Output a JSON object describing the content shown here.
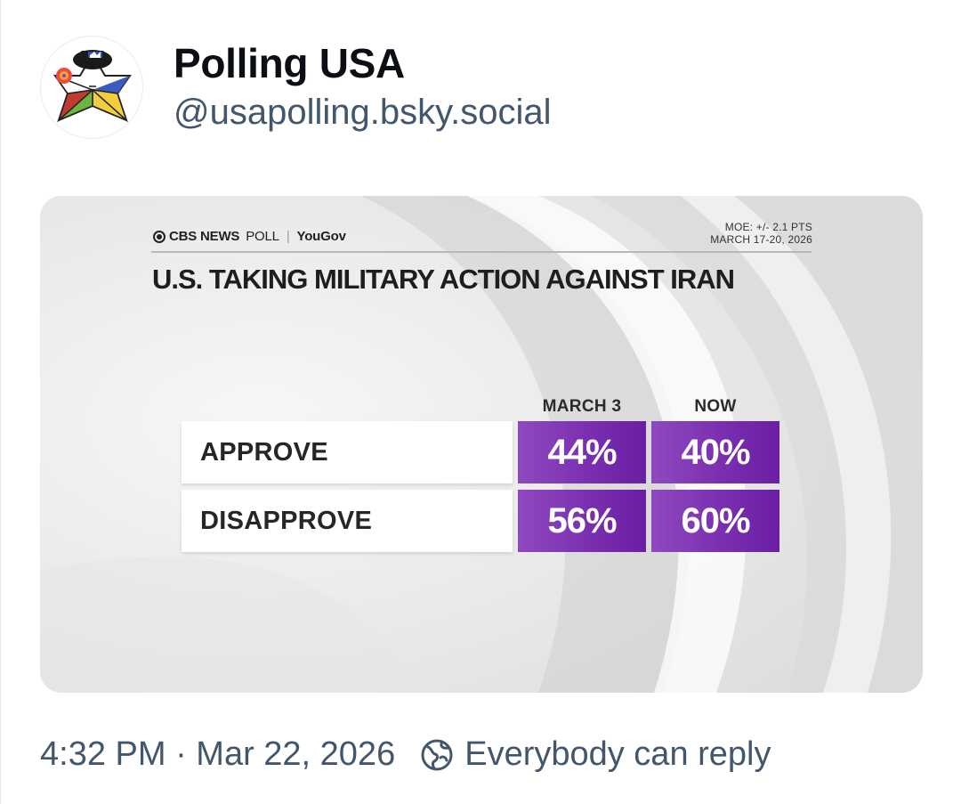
{
  "post": {
    "author": {
      "display_name": "Polling USA",
      "handle": "@usapolling.bsky.social"
    },
    "timestamp": "4:32 PM · Mar 22, 2026",
    "reply_setting": "Everybody can reply"
  },
  "poll_graphic": {
    "brand": {
      "cbs": "CBS NEWS",
      "poll": "POLL",
      "separator": "|",
      "partner": "YouGov"
    },
    "moe": "MOE: +/- 2.1 PTS",
    "dates": "MARCH 17-20, 2026",
    "title": "U.S. TAKING MILITARY ACTION AGAINST IRAN",
    "columns": [
      "MARCH 3",
      "NOW"
    ],
    "rows": [
      {
        "label": "APPROVE",
        "march3": "44%",
        "now": "40%"
      },
      {
        "label": "DISAPPROVE",
        "march3": "56%",
        "now": "60%"
      }
    ]
  },
  "colors": {
    "cell_purple": "#7a2fb0",
    "meta_text": "#42576c"
  }
}
